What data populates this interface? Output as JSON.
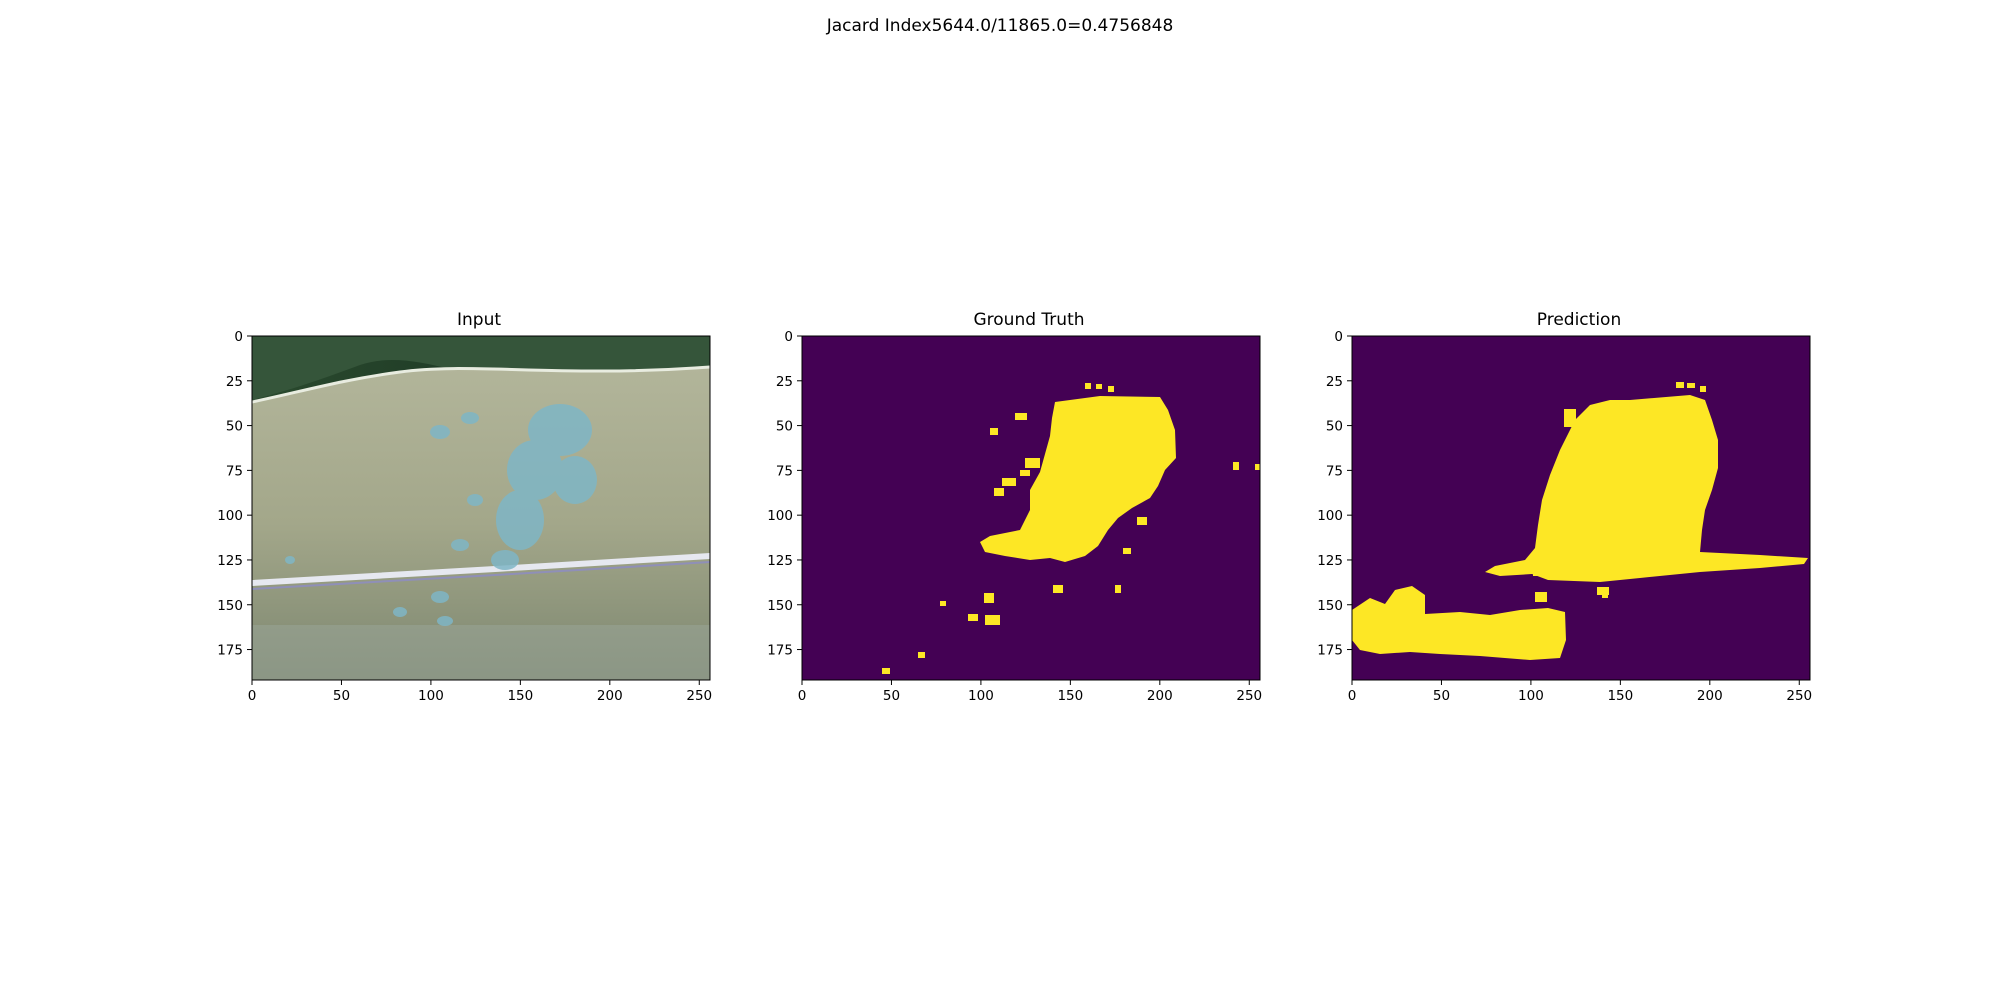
{
  "figure": {
    "suptitle": "Jacard Index5644.0/11865.0=0.4756848"
  },
  "panels": [
    {
      "title": "Input",
      "image": "photo of a green maize leaf with blue-grey disease lesions"
    },
    {
      "title": "Ground Truth",
      "image": "binary segmentation mask"
    },
    {
      "title": "Prediction",
      "image": "binary segmentation mask"
    }
  ],
  "axes": {
    "xlim": [
      0,
      256
    ],
    "ylim": [
      192,
      0
    ],
    "xticks": [
      "0",
      "50",
      "100",
      "150",
      "200",
      "250"
    ],
    "yticks": [
      "0",
      "25",
      "50",
      "75",
      "100",
      "125",
      "150",
      "175"
    ]
  },
  "colors": {
    "mask_background": "#440154",
    "mask_foreground": "#fde725"
  }
}
